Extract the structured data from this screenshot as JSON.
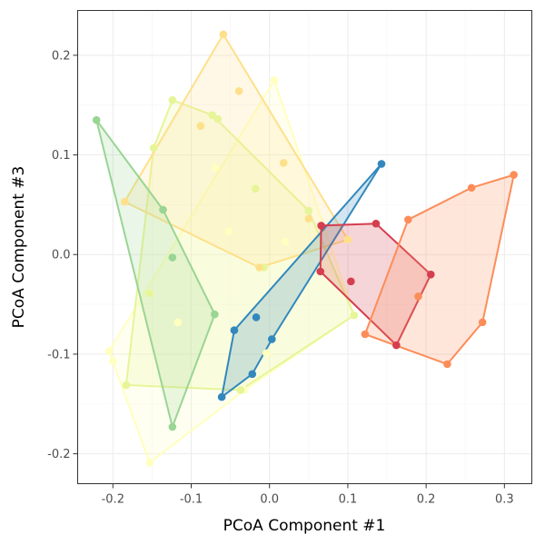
{
  "chart_data": {
    "type": "scatter",
    "title": "",
    "xlabel": "PCoA Component #1",
    "ylabel": "PCoA Component #3",
    "xlim": [
      -0.245,
      0.335
    ],
    "ylim": [
      -0.23,
      0.245
    ],
    "xticks": [
      {
        "value": -0.2,
        "label": "-0.2"
      },
      {
        "value": -0.1,
        "label": "-0.1"
      },
      {
        "value": 0.0,
        "label": "0.0"
      },
      {
        "value": 0.1,
        "label": "0.1"
      },
      {
        "value": 0.2,
        "label": "0.2"
      },
      {
        "value": 0.3,
        "label": "0.3"
      }
    ],
    "yticks": [
      {
        "value": -0.2,
        "label": "-0.2"
      },
      {
        "value": -0.1,
        "label": "-0.1"
      },
      {
        "value": 0.0,
        "label": "0.0"
      },
      {
        "value": 0.1,
        "label": "0.1"
      },
      {
        "value": 0.2,
        "label": "0.2"
      }
    ],
    "grid": true,
    "legend": "none",
    "series": [
      {
        "color": "#ffffbf",
        "points": [
          [
            0.006,
            0.175
          ],
          [
            -0.069,
            0.087
          ],
          [
            -0.052,
            0.023
          ],
          [
            -0.013,
            -0.013
          ],
          [
            0.02,
            0.013
          ],
          [
            -0.117,
            -0.068
          ],
          [
            -0.153,
            -0.039
          ],
          [
            -0.004,
            -0.099
          ],
          [
            -0.032,
            -0.136
          ],
          [
            -0.205,
            -0.097
          ],
          [
            -0.2,
            -0.107
          ],
          [
            -0.153,
            -0.209
          ],
          [
            0.108,
            -0.061
          ]
        ],
        "hull": [
          [
            0.006,
            0.175
          ],
          [
            0.108,
            -0.061
          ],
          [
            -0.032,
            -0.136
          ],
          [
            -0.153,
            -0.209
          ],
          [
            -0.205,
            -0.097
          ]
        ]
      },
      {
        "color": "#e6f598",
        "points": [
          [
            -0.124,
            0.155
          ],
          [
            -0.073,
            0.14
          ],
          [
            -0.066,
            0.136
          ],
          [
            -0.148,
            0.107
          ],
          [
            -0.018,
            0.066
          ],
          [
            0.05,
            0.044
          ],
          [
            -0.007,
            -0.013
          ],
          [
            -0.153,
            -0.039
          ],
          [
            -0.183,
            -0.131
          ],
          [
            -0.037,
            -0.136
          ],
          [
            0.108,
            -0.061
          ]
        ],
        "hull": [
          [
            -0.124,
            0.155
          ],
          [
            -0.073,
            0.14
          ],
          [
            0.05,
            0.044
          ],
          [
            0.108,
            -0.061
          ],
          [
            -0.037,
            -0.136
          ],
          [
            -0.183,
            -0.131
          ],
          [
            -0.148,
            0.107
          ]
        ]
      },
      {
        "color": "#fee08b",
        "points": [
          [
            -0.059,
            0.221
          ],
          [
            -0.039,
            0.164
          ],
          [
            -0.088,
            0.129
          ],
          [
            0.018,
            0.092
          ],
          [
            -0.185,
            0.053
          ],
          [
            0.05,
            0.036
          ],
          [
            0.1,
            0.015
          ],
          [
            -0.013,
            -0.013
          ]
        ],
        "hull": [
          [
            -0.059,
            0.221
          ],
          [
            0.1,
            0.015
          ],
          [
            -0.013,
            -0.013
          ],
          [
            -0.185,
            0.053
          ]
        ]
      },
      {
        "color": "#99d594",
        "points": [
          [
            -0.221,
            0.135
          ],
          [
            -0.136,
            0.045
          ],
          [
            -0.124,
            -0.003
          ],
          [
            -0.07,
            -0.06
          ],
          [
            -0.124,
            -0.173
          ]
        ],
        "hull": [
          [
            -0.221,
            0.135
          ],
          [
            -0.136,
            0.045
          ],
          [
            -0.07,
            -0.06
          ],
          [
            -0.124,
            -0.173
          ]
        ]
      },
      {
        "color": "#3288bd",
        "points": [
          [
            0.143,
            0.091
          ],
          [
            -0.045,
            -0.076
          ],
          [
            -0.017,
            -0.063
          ],
          [
            0.003,
            -0.085
          ],
          [
            -0.022,
            -0.12
          ],
          [
            -0.061,
            -0.143
          ]
        ],
        "hull": [
          [
            0.143,
            0.091
          ],
          [
            0.003,
            -0.085
          ],
          [
            -0.022,
            -0.12
          ],
          [
            -0.061,
            -0.143
          ],
          [
            -0.045,
            -0.076
          ]
        ]
      },
      {
        "color": "#d53e4f",
        "points": [
          [
            0.066,
            0.029
          ],
          [
            0.136,
            0.031
          ],
          [
            0.206,
            -0.02
          ],
          [
            0.104,
            -0.027
          ],
          [
            0.065,
            -0.017
          ],
          [
            0.162,
            -0.091
          ]
        ],
        "hull": [
          [
            0.066,
            0.029
          ],
          [
            0.136,
            0.031
          ],
          [
            0.206,
            -0.02
          ],
          [
            0.162,
            -0.091
          ],
          [
            0.065,
            -0.017
          ]
        ]
      },
      {
        "color": "#fc8d59",
        "points": [
          [
            0.312,
            0.08
          ],
          [
            0.258,
            0.067
          ],
          [
            0.177,
            0.035
          ],
          [
            0.19,
            -0.042
          ],
          [
            0.272,
            -0.068
          ],
          [
            0.122,
            -0.08
          ],
          [
            0.227,
            -0.11
          ]
        ],
        "hull": [
          [
            0.312,
            0.08
          ],
          [
            0.272,
            -0.068
          ],
          [
            0.227,
            -0.11
          ],
          [
            0.122,
            -0.08
          ],
          [
            0.177,
            0.035
          ],
          [
            0.258,
            0.067
          ]
        ]
      }
    ]
  }
}
